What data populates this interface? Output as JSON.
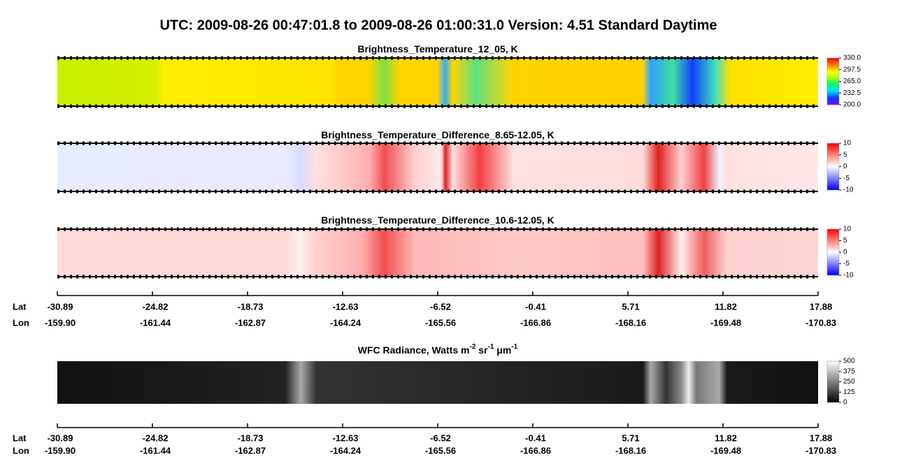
{
  "title": "UTC:  2009-08-26   00:47:01.8  to  2009-08-26   01:00:31.0    Version: 4.51  Standard Daytime",
  "panels": [
    {
      "title": [
        "Brightness_Temperature_12_05, K"
      ],
      "colorbar": {
        "lim": [
          200,
          330
        ],
        "ticks": [
          {
            "value": 330,
            "label": "330.0"
          },
          297.5,
          {
            "value": 265,
            "label": "265.0"
          },
          232.5,
          {
            "value": 200,
            "label": "200.0"
          }
        ]
      }
    },
    {
      "title": [
        "Brightness_Temperature_Difference_8.65-12.05, K"
      ],
      "colorbar": {
        "lim": [
          -10,
          10
        ],
        "ticks": [
          10,
          5,
          0,
          -5,
          -10
        ]
      }
    },
    {
      "title": [
        "Brightness_Temperature_Difference_10.6-12.05, K"
      ],
      "colorbar": {
        "lim": [
          -10,
          10
        ],
        "ticks": [
          10,
          5,
          0,
          -5,
          -10
        ]
      }
    },
    {
      "title": [
        "WFC Radiance, Watts m",
        "-2",
        " sr",
        "-1",
        " μm",
        "-1"
      ],
      "colorbar": {
        "lim": [
          0,
          500
        ],
        "ticks": [
          500,
          375,
          250,
          125,
          0
        ]
      }
    }
  ],
  "axis": {
    "lat_label": "Lat",
    "lon_label": "Lon",
    "lat": [
      -30.89,
      -24.82,
      -18.73,
      -12.63,
      -6.52,
      -0.41,
      5.71,
      11.82,
      17.88
    ],
    "lon": [
      {
        "value": -159.9,
        "label": "-159.90"
      },
      -161.44,
      -162.87,
      -164.24,
      -165.56,
      -166.86,
      -168.16,
      -169.48,
      -170.83
    ]
  }
}
